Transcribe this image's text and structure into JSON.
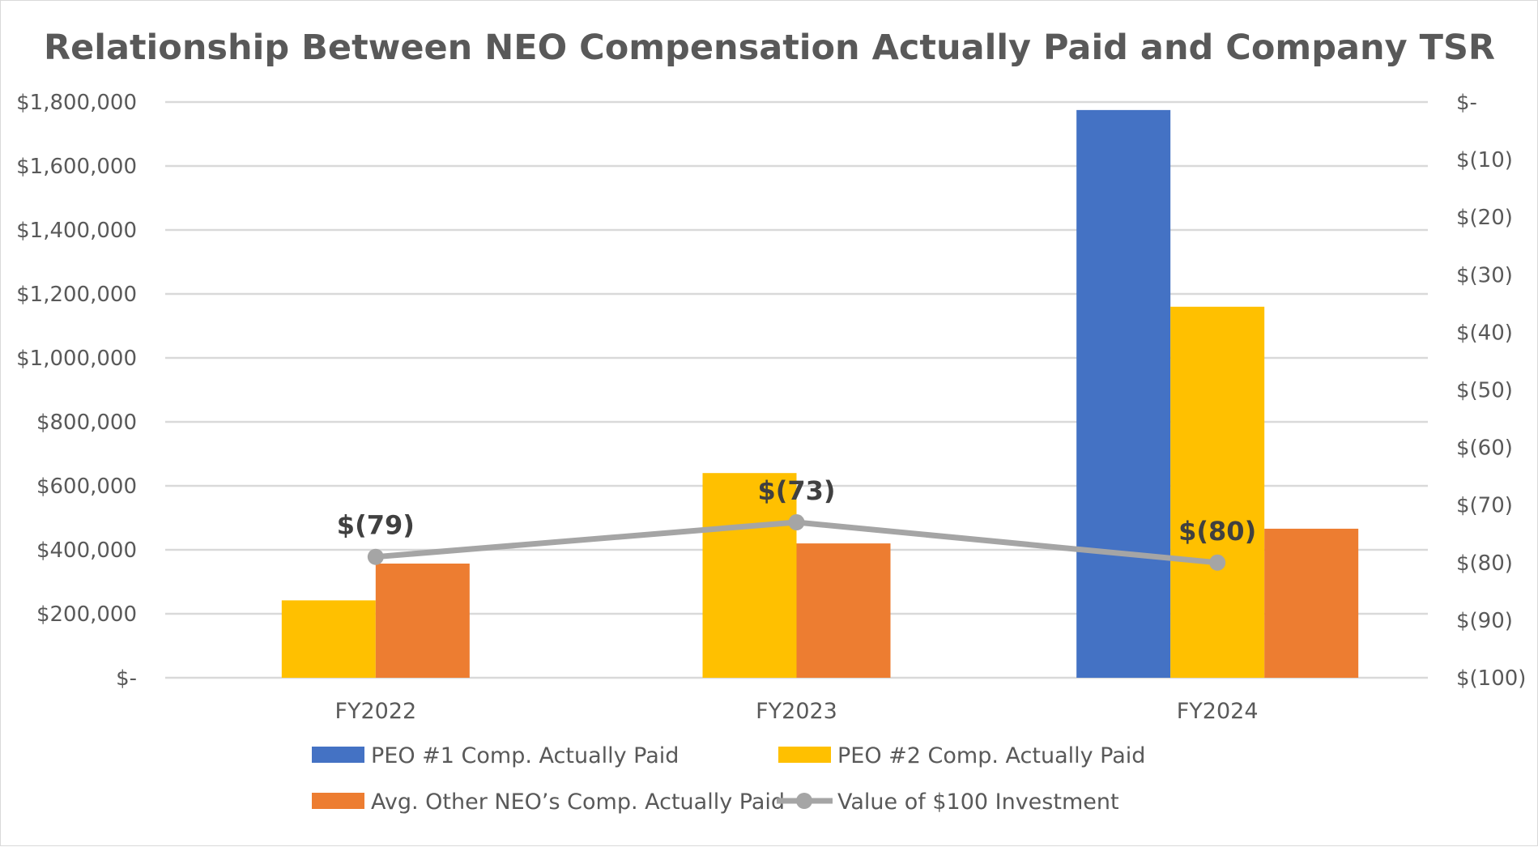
{
  "chart_data": {
    "type": "bar",
    "title": "Relationship Between NEO Compensation Actually Paid and Company TSR",
    "categories": [
      "FY2022",
      "FY2023",
      "FY2024"
    ],
    "y_left": {
      "ylim": [
        0,
        1800000
      ],
      "ticks": [
        0,
        200000,
        400000,
        600000,
        800000,
        1000000,
        1200000,
        1400000,
        1600000,
        1800000
      ],
      "tick_labels": [
        "$-",
        "$200,000",
        "$400,000",
        "$600,000",
        "$800,000",
        "$1,000,000",
        "$1,200,000",
        "$1,400,000",
        "$1,600,000",
        "$1,800,000"
      ]
    },
    "y_right": {
      "ylim": [
        -100,
        0
      ],
      "ticks": [
        0,
        -10,
        -20,
        -30,
        -40,
        -50,
        -60,
        -70,
        -80,
        -90,
        -100
      ],
      "tick_labels": [
        "$-",
        "$(10)",
        "$(20)",
        "$(30)",
        "$(40)",
        "$(50)",
        "$(60)",
        "$(70)",
        "$(80)",
        "$(90)",
        "$(100)"
      ]
    },
    "series": [
      {
        "name": "PEO #1 Comp. Actually Paid",
        "kind": "bar",
        "axis": "left",
        "color": "#4472c4",
        "values": [
          null,
          null,
          1775000
        ]
      },
      {
        "name": "PEO #2 Comp. Actually Paid",
        "kind": "bar",
        "axis": "left",
        "color": "#ffc000",
        "values": [
          242000,
          640000,
          1160000
        ]
      },
      {
        "name": "Avg. Other NEO’s Comp. Actually Paid",
        "kind": "bar",
        "axis": "left",
        "color": "#ed7d31",
        "values": [
          357000,
          420000,
          466000
        ]
      },
      {
        "name": "Value of $100 Investment",
        "kind": "line",
        "axis": "right",
        "color": "#a5a5a5",
        "values": [
          -79,
          -73,
          -80
        ],
        "data_labels": [
          "$(79)",
          "$(73)",
          "$(80)"
        ]
      }
    ],
    "legend": "bottom"
  }
}
